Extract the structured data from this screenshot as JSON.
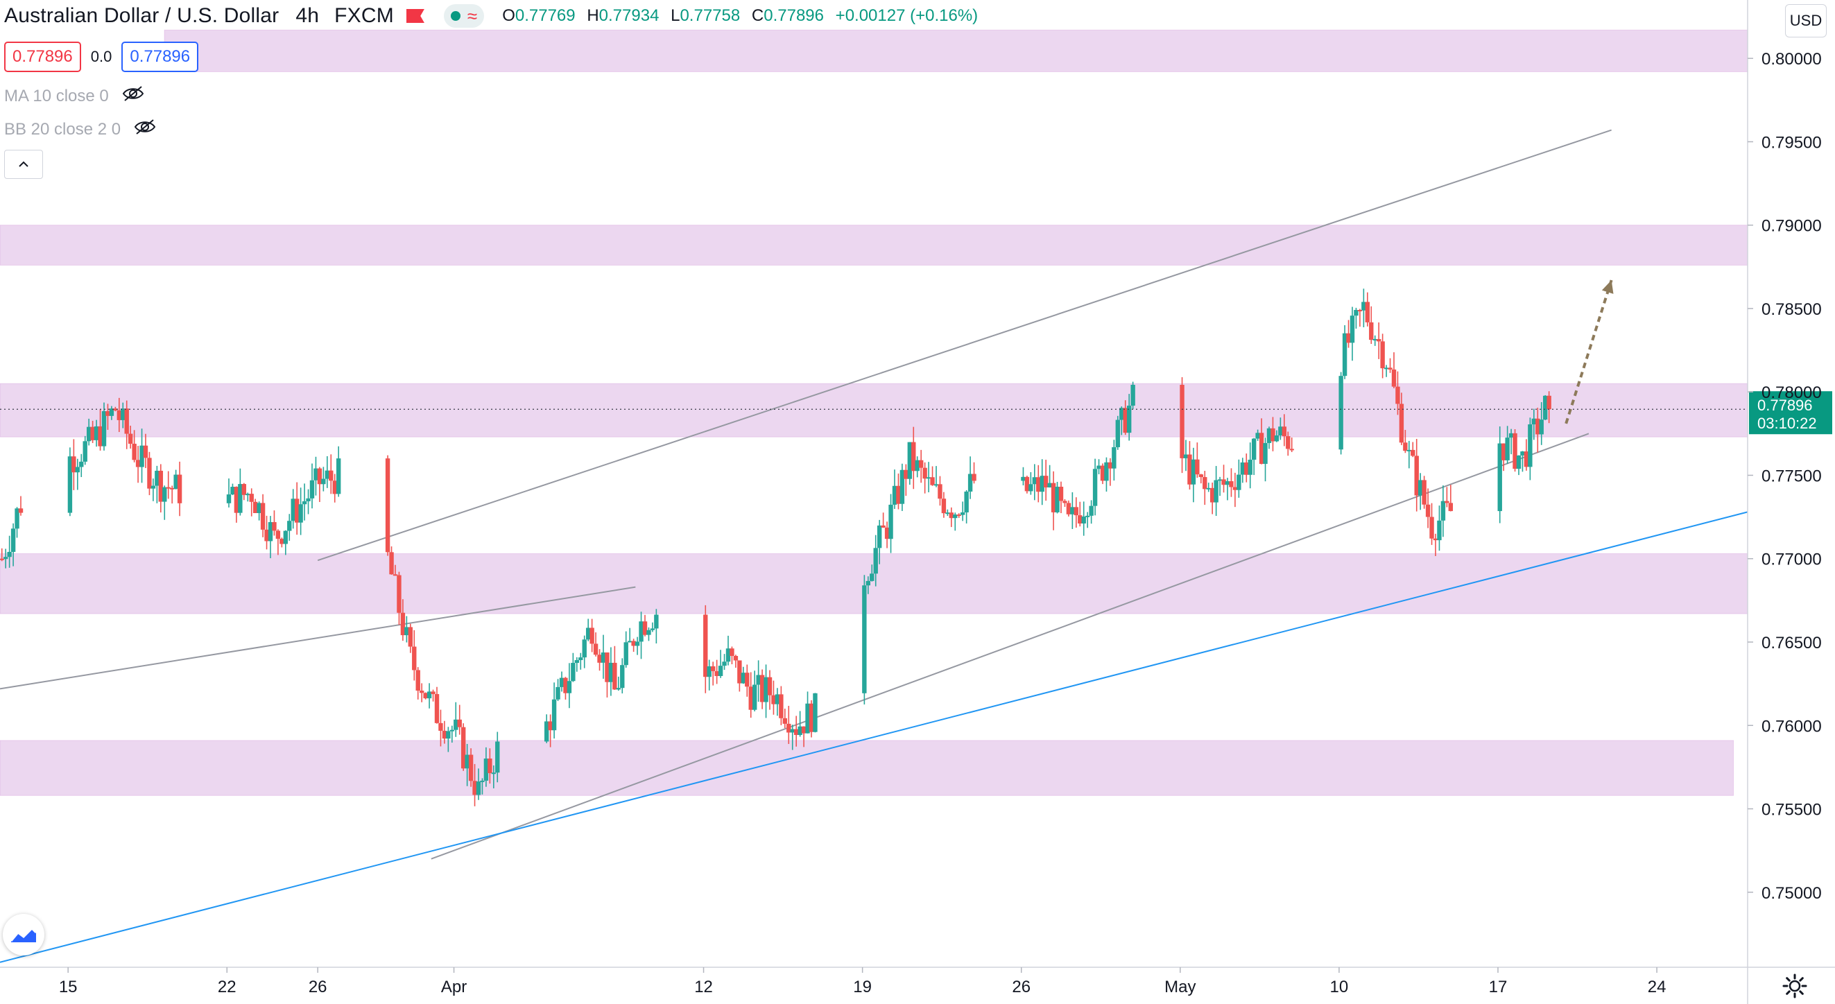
{
  "header": {
    "symbol": "Australian Dollar / U.S. Dollar",
    "interval": "4h",
    "exchange": "FXCM",
    "ohlc": [
      {
        "label": "O",
        "value": "0.77769"
      },
      {
        "label": "H",
        "value": "0.77934"
      },
      {
        "label": "L",
        "value": "0.77758"
      },
      {
        "label": "C",
        "value": "0.77896"
      }
    ],
    "change": "+0.00127 (+0.16%)"
  },
  "trade": {
    "sell_price": "0.77896",
    "spread": "0.0",
    "buy_price": "0.77896"
  },
  "indicators": [
    {
      "label": "MA 10 close 0",
      "icon": "eye-off-icon"
    },
    {
      "label": "BB 20 close 2 0",
      "icon": "eye-off-icon"
    }
  ],
  "currency": "USD",
  "price_scale": {
    "ticks": [
      "0.80000",
      "0.79500",
      "0.79000",
      "0.78500",
      "0.78000",
      "0.77500",
      "0.77000",
      "0.76500",
      "0.76000",
      "0.75500",
      "0.75000"
    ],
    "current_price": "0.77896",
    "countdown": "03:10:22"
  },
  "time_axis": {
    "labels": [
      "15",
      "22",
      "26",
      "Apr",
      "12",
      "19",
      "26",
      "May",
      "10",
      "17",
      "24"
    ]
  },
  "colors": {
    "up": "#26a69a",
    "down": "#ef5350",
    "zone": "#e1bee7",
    "trendline": "#9598a1",
    "support_line": "#2196f3",
    "projection_arrow": "#8d7a5a",
    "price_label": "#089981"
  },
  "chart_data": {
    "type": "candlestick",
    "title": "Australian Dollar / U.S. Dollar, 4h, FXCM",
    "x_range": [
      "2021-03-12",
      "2021-05-28"
    ],
    "y_range": [
      0.7455,
      0.8035
    ],
    "grid": false,
    "last_close": 0.77896,
    "zones": [
      {
        "from": 0.7992,
        "to": 0.8017
      },
      {
        "from": 0.7876,
        "to": 0.79
      },
      {
        "from": 0.7773,
        "to": 0.7805
      },
      {
        "from": 0.7667,
        "to": 0.7703
      },
      {
        "from": 0.7558,
        "to": 0.7591
      }
    ],
    "trendlines": [
      {
        "name": "channel-upper",
        "points": [
          [
            "2021-03-26",
            0.7699
          ],
          [
            "2021-05-22",
            0.7957
          ]
        ]
      },
      {
        "name": "channel-lower",
        "points": [
          [
            "2021-03-31",
            0.752
          ],
          [
            "2021-05-21",
            0.7775
          ]
        ]
      },
      {
        "name": "early-resistance",
        "points": [
          [
            "2021-03-12",
            0.7622
          ],
          [
            "2021-04-09",
            0.7683
          ]
        ]
      },
      {
        "name": "support",
        "points": [
          [
            "2021-03-12",
            0.7458
          ],
          [
            "2021-05-28",
            0.7728
          ]
        ]
      }
    ],
    "projection_arrow": {
      "from": [
        "2021-05-20",
        0.7781
      ],
      "to": [
        "2021-05-22",
        0.7867
      ]
    },
    "anchors": [
      [
        "2021-03-12",
        0.77
      ],
      [
        "2021-03-13",
        0.774
      ],
      [
        "2021-03-15",
        0.776
      ],
      [
        "2021-03-16",
        0.777
      ],
      [
        "2021-03-17",
        0.779
      ],
      [
        "2021-03-18",
        0.776
      ],
      [
        "2021-03-19",
        0.7745
      ],
      [
        "2021-03-20",
        0.774
      ],
      [
        "2021-03-21",
        0.7745
      ],
      [
        "2021-03-22",
        0.7735
      ],
      [
        "2021-03-23",
        0.774
      ],
      [
        "2021-03-24",
        0.7712
      ],
      [
        "2021-03-25",
        0.773
      ],
      [
        "2021-03-26",
        0.7746
      ],
      [
        "2021-03-27",
        0.775
      ],
      [
        "2021-03-28",
        0.772
      ],
      [
        "2021-03-29",
        0.77
      ],
      [
        "2021-03-30",
        0.764
      ],
      [
        "2021-03-31",
        0.761
      ],
      [
        "2021-04-01",
        0.7595
      ],
      [
        "2021-04-02",
        0.756
      ],
      [
        "2021-04-03",
        0.759
      ],
      [
        "2021-04-05",
        0.76
      ],
      [
        "2021-04-06",
        0.763
      ],
      [
        "2021-04-07",
        0.766
      ],
      [
        "2021-04-08",
        0.762
      ],
      [
        "2021-04-09",
        0.766
      ],
      [
        "2021-04-10",
        0.767
      ],
      [
        "2021-04-12",
        0.763
      ],
      [
        "2021-04-13",
        0.764
      ],
      [
        "2021-04-14",
        0.762
      ],
      [
        "2021-04-15",
        0.762
      ],
      [
        "2021-04-16",
        0.76
      ],
      [
        "2021-04-17",
        0.761
      ],
      [
        "2021-04-18",
        0.766
      ],
      [
        "2021-04-19",
        0.769
      ],
      [
        "2021-04-20",
        0.772
      ],
      [
        "2021-04-21",
        0.776
      ],
      [
        "2021-04-22",
        0.774
      ],
      [
        "2021-04-23",
        0.773
      ],
      [
        "2021-04-24",
        0.775
      ],
      [
        "2021-04-25",
        0.777
      ],
      [
        "2021-04-26",
        0.774
      ],
      [
        "2021-04-27",
        0.7745
      ],
      [
        "2021-04-28",
        0.772
      ],
      [
        "2021-04-29",
        0.774
      ],
      [
        "2021-04-30",
        0.777
      ],
      [
        "2021-05-01",
        0.78
      ],
      [
        "2021-05-02",
        0.776
      ],
      [
        "2021-05-03",
        0.776
      ],
      [
        "2021-05-04",
        0.774
      ],
      [
        "2021-05-05",
        0.7745
      ],
      [
        "2021-05-06",
        0.776
      ],
      [
        "2021-05-07",
        0.7775
      ],
      [
        "2021-05-08",
        0.777
      ],
      [
        "2021-05-09",
        0.779
      ],
      [
        "2021-05-10",
        0.782
      ],
      [
        "2021-05-11",
        0.785
      ],
      [
        "2021-05-12",
        0.782
      ],
      [
        "2021-05-13",
        0.776
      ],
      [
        "2021-05-14",
        0.772
      ],
      [
        "2021-05-15",
        0.773
      ],
      [
        "2021-05-16",
        0.7745
      ],
      [
        "2021-05-17",
        0.777
      ],
      [
        "2021-05-18",
        0.776
      ],
      [
        "2021-05-19",
        0.779
      ]
    ]
  }
}
